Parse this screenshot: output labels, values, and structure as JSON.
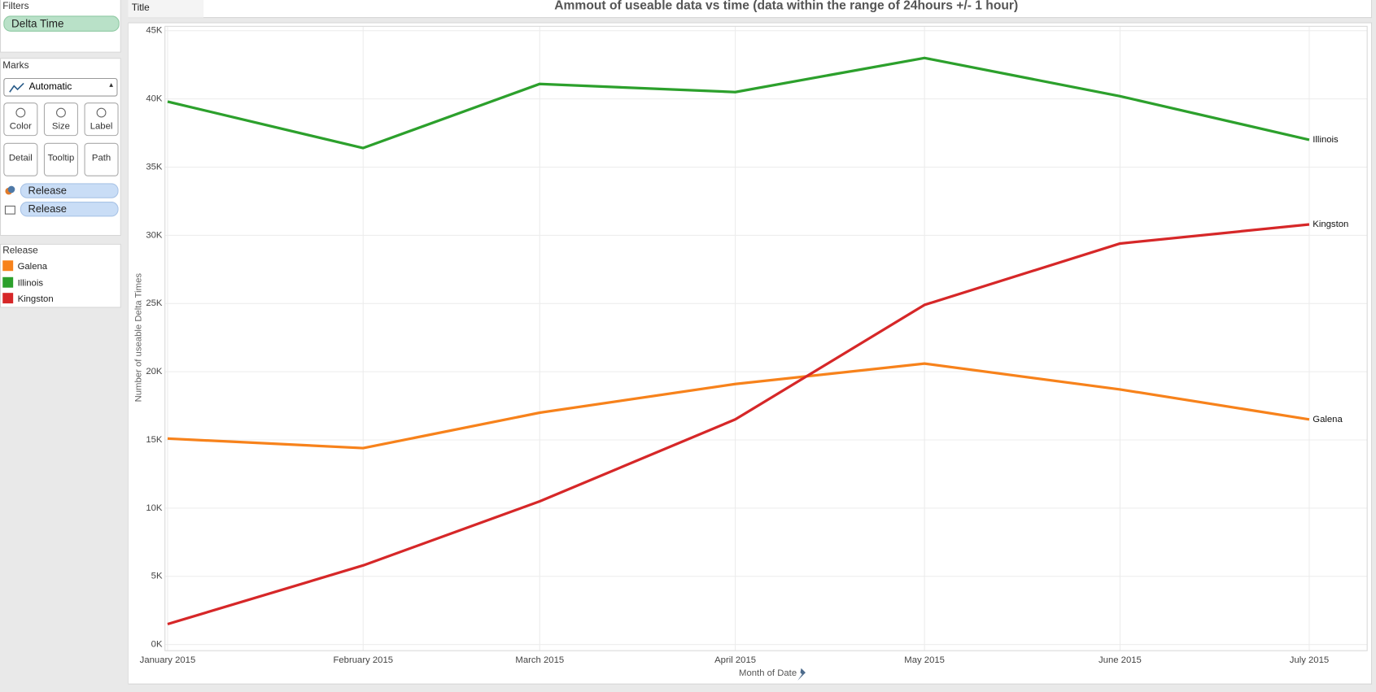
{
  "sidebar": {
    "filters": {
      "title": "Filters",
      "pill": "Delta Time"
    },
    "marks": {
      "title": "Marks",
      "mark_type": "Automatic",
      "buttons": [
        "Color",
        "Size",
        "Label",
        "Detail",
        "Tooltip",
        "Path"
      ],
      "pills": [
        "Release",
        "Release"
      ]
    },
    "legend": {
      "title": "Release"
    }
  },
  "title_panel": {
    "label": "Title"
  },
  "chart_data": {
    "type": "line",
    "title": "Ammout of useable data vs time (data within the range of 24hours +/- 1 hour)",
    "x_label": "Month of Date",
    "y_label": "Number of useable Delta Times",
    "categories": [
      "January 2015",
      "February 2015",
      "March 2015",
      "April 2015",
      "May 2015",
      "June 2015",
      "July 2015"
    ],
    "series": [
      {
        "name": "Galena",
        "color": "#f7821b",
        "values": [
          15100,
          14400,
          17000,
          19100,
          20600,
          18700,
          16500
        ]
      },
      {
        "name": "Illinois",
        "color": "#2ca02c",
        "values": [
          39800,
          36400,
          41100,
          40500,
          43000,
          40200,
          37000
        ]
      },
      {
        "name": "Kingston",
        "color": "#d62728",
        "values": [
          1500,
          5800,
          10500,
          16500,
          24900,
          29400,
          30800
        ]
      }
    ],
    "ylim": [
      0,
      45000
    ],
    "yticks": [
      {
        "value": 0,
        "label": "0K"
      },
      {
        "value": 5000,
        "label": "5K"
      },
      {
        "value": 10000,
        "label": "10K"
      },
      {
        "value": 15000,
        "label": "15K"
      },
      {
        "value": 20000,
        "label": "20K"
      },
      {
        "value": 25000,
        "label": "25K"
      },
      {
        "value": 30000,
        "label": "30K"
      },
      {
        "value": 35000,
        "label": "35K"
      },
      {
        "value": 40000,
        "label": "40K"
      },
      {
        "value": 45000,
        "label": "45K"
      }
    ],
    "grid": true,
    "end_labels": true
  }
}
